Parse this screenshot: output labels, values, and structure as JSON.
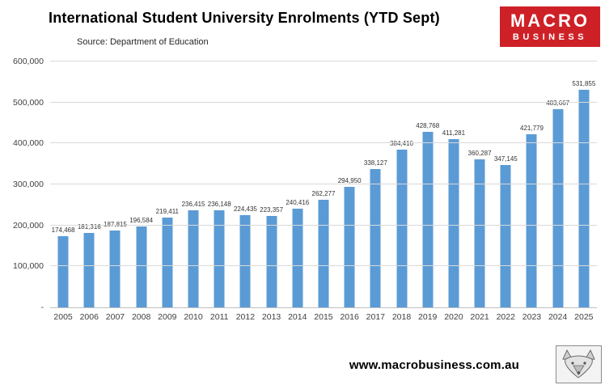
{
  "header": {
    "title": "International Student University Enrolments (YTD Sept)",
    "source": "Source: Department of Education",
    "logo": {
      "line1": "MACRO",
      "line2": "BUSINESS",
      "bg_color": "#CE2127",
      "text_color": "#FFFFFF"
    }
  },
  "chart_data": {
    "type": "bar",
    "title": "International Student University Enrolments (YTD Sept)",
    "categories": [
      "2005",
      "2006",
      "2007",
      "2008",
      "2009",
      "2010",
      "2011",
      "2012",
      "2013",
      "2014",
      "2015",
      "2016",
      "2017",
      "2018",
      "2019",
      "2020",
      "2021",
      "2022",
      "2023",
      "2024",
      "2025"
    ],
    "values": [
      174468,
      181316,
      187815,
      196584,
      219411,
      236415,
      236148,
      224435,
      223357,
      240416,
      262277,
      294950,
      338127,
      384416,
      428768,
      411281,
      360287,
      347145,
      421779,
      483667,
      531855
    ],
    "xlabel": "",
    "ylabel": "",
    "ylim": [
      0,
      600000
    ],
    "ytick_step": 100000,
    "ytick_labels": [
      "-",
      "100,000",
      "200,000",
      "300,000",
      "400,000",
      "500,000",
      "600,000"
    ],
    "bar_color": "#5B9BD5",
    "grid": true,
    "legend": "none",
    "data_labels": true
  },
  "footer": {
    "website": "www.macrobusiness.com.au"
  }
}
